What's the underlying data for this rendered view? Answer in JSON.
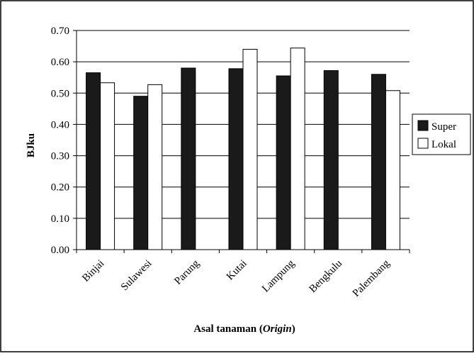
{
  "chart_data": {
    "type": "bar",
    "categories": [
      "Binjai",
      "Sulawesi",
      "Parung",
      "Kutai",
      "Lampung",
      "Bengkulu",
      "Palembang"
    ],
    "series": [
      {
        "name": "Super",
        "color": "#1a1a1a",
        "values": [
          0.565,
          0.49,
          0.58,
          0.578,
          0.555,
          0.572,
          0.56
        ]
      },
      {
        "name": "Lokal",
        "color": "#ffffff",
        "values": [
          0.533,
          0.527,
          null,
          0.64,
          0.644,
          null,
          0.508
        ]
      }
    ],
    "ylim": [
      0,
      0.7
    ],
    "yticks": [
      "0.00",
      "0.10",
      "0.20",
      "0.30",
      "0.40",
      "0.50",
      "0.60",
      "0.70"
    ],
    "ylabel": "BJku",
    "xlabel": {
      "main": "Asal tanaman (",
      "italic": "Origin",
      "end": ")"
    },
    "grid": true,
    "legend": "right"
  }
}
